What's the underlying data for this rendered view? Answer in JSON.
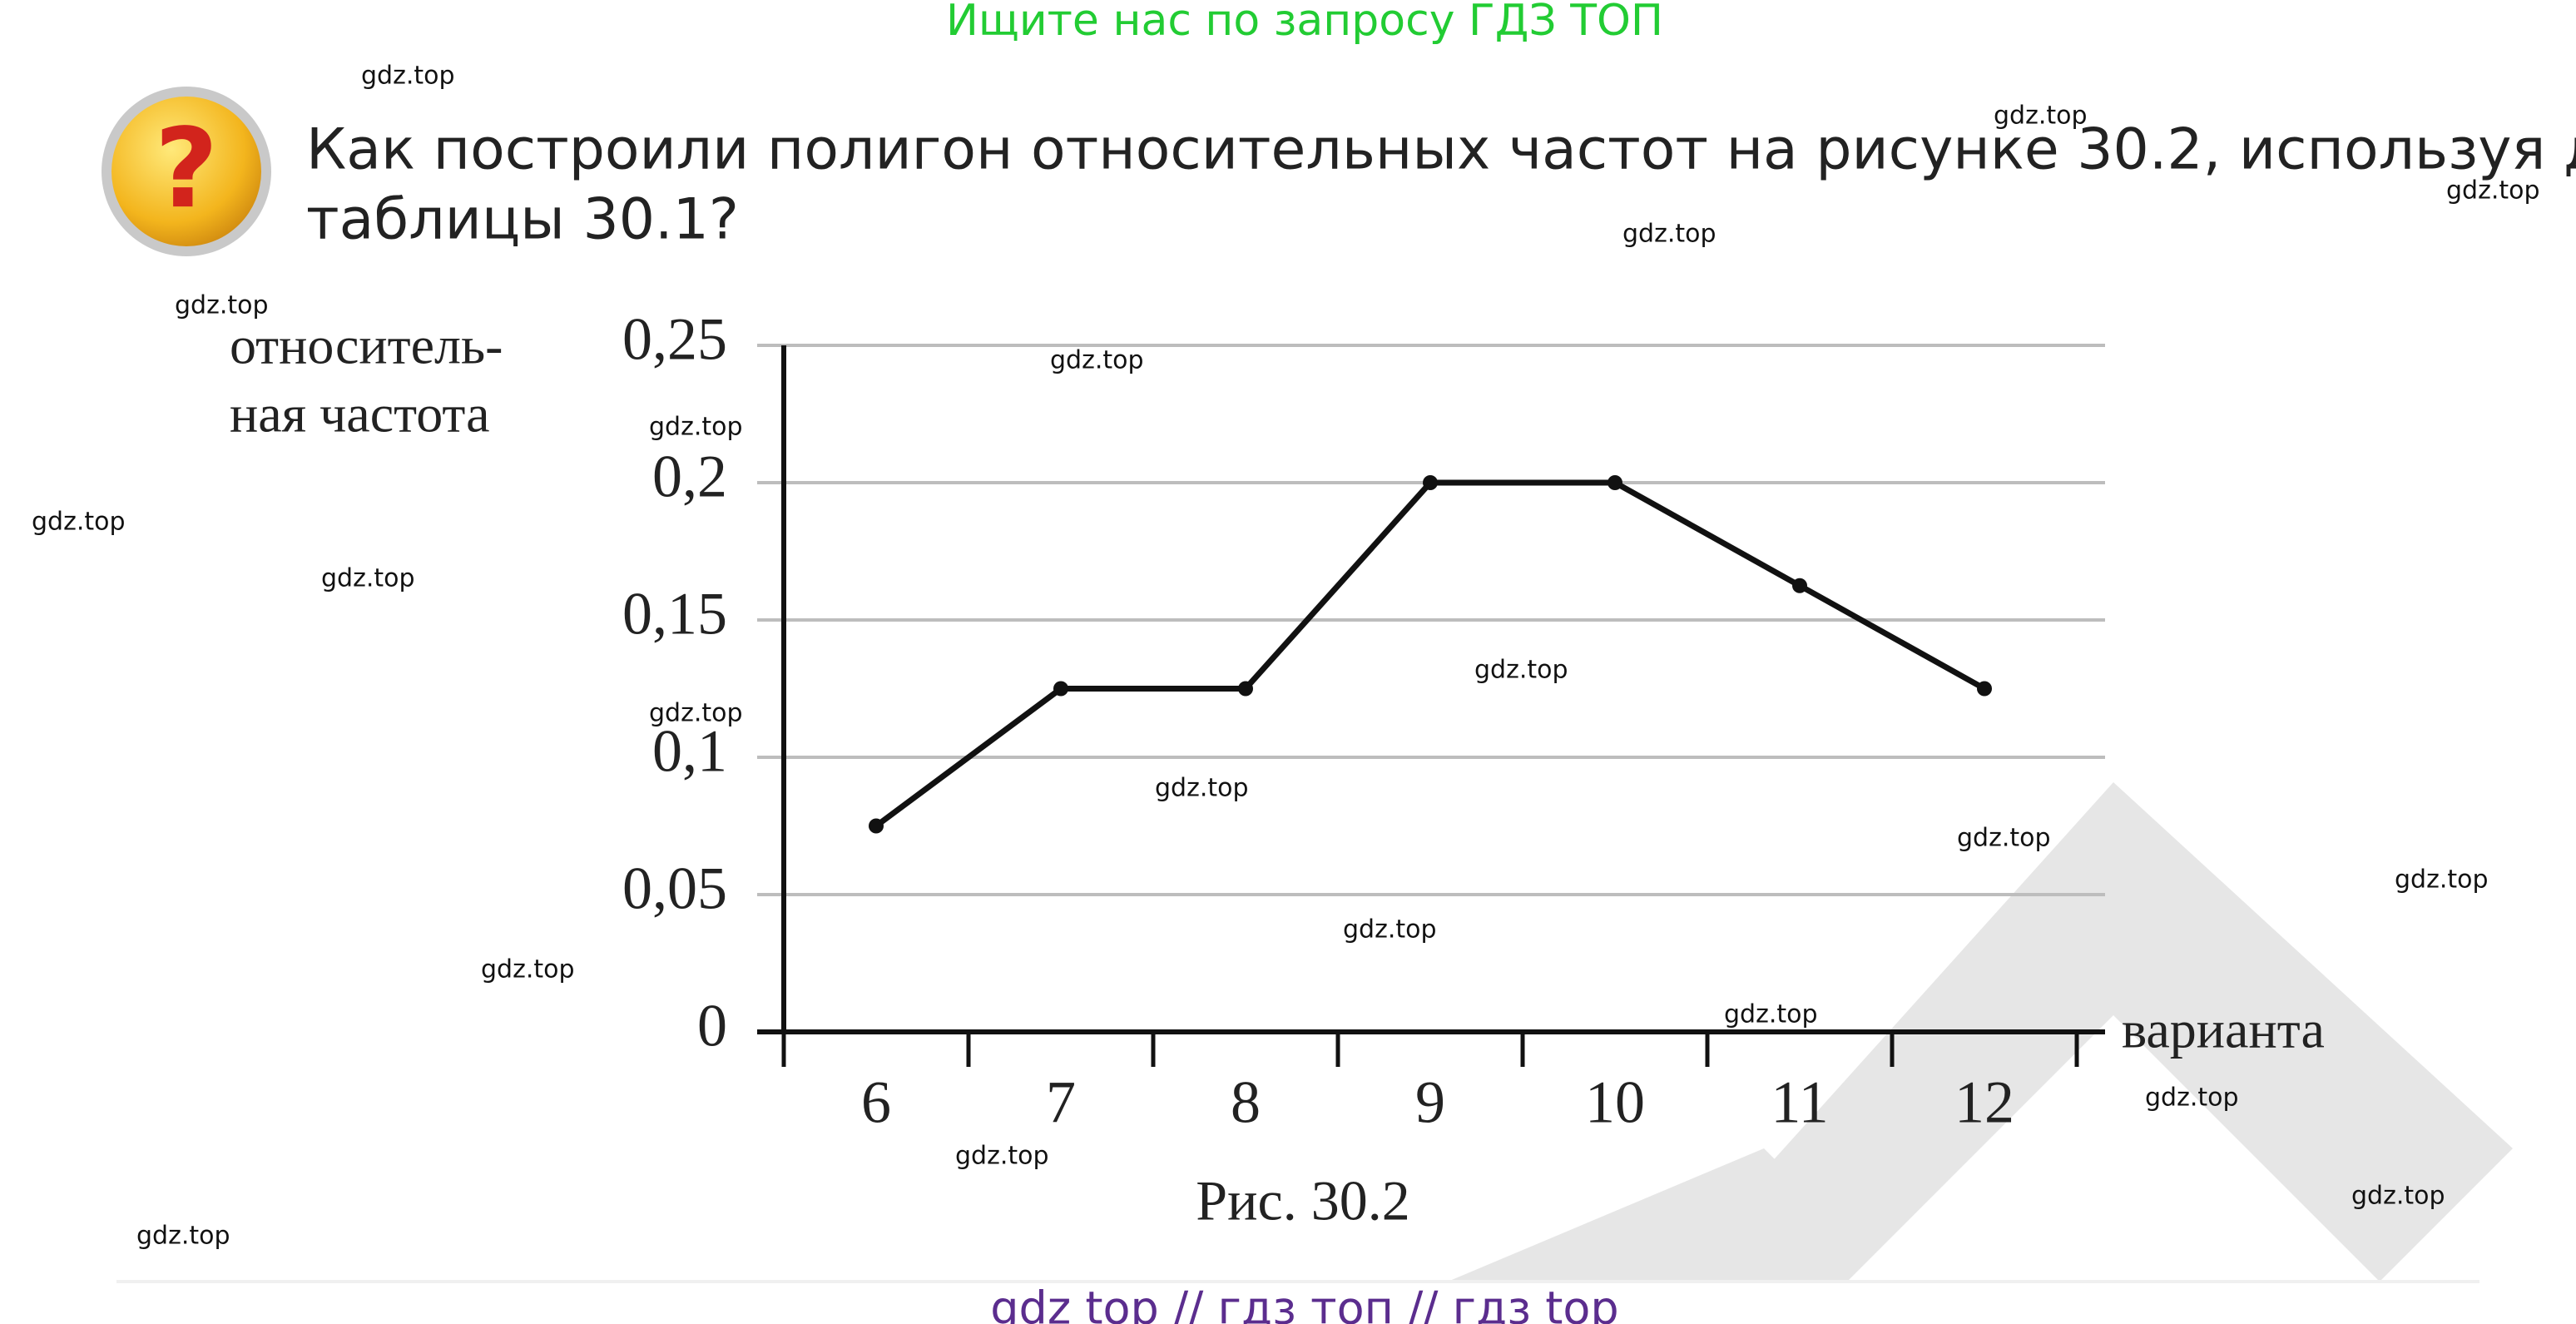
{
  "header": {
    "banner": "Ищите нас по запросу ГДЗ ТОП"
  },
  "question": {
    "lines": [
      "Как построили полигон относительных частот на рисунке 30.2, используя данные",
      "таблицы 30.1?"
    ]
  },
  "chart_data": {
    "type": "line",
    "y_label": [
      "относитель-",
      "ная частота"
    ],
    "x_label": "варианта",
    "caption": "Рис. 30.2",
    "categories": [
      "6",
      "7",
      "8",
      "9",
      "10",
      "11",
      "12"
    ],
    "values": [
      0.075,
      0.125,
      0.125,
      0.2,
      0.2,
      0.1625,
      0.125
    ],
    "color": "#111111",
    "ylim": [
      0,
      0.25
    ],
    "yticks": [
      0,
      {
        "value": 0.05,
        "label": "0,05"
      },
      {
        "value": 0.1,
        "label": "0,1"
      },
      {
        "value": 0.15,
        "label": "0,15"
      },
      {
        "value": 0.2,
        "label": "0,2"
      },
      {
        "value": 0.25,
        "label": "0,25"
      }
    ],
    "grid": true
  },
  "watermarks": [
    "gdz.top",
    "gdz.top",
    "gdz.top",
    "gdz.top",
    "gdz.top",
    "gdz.top",
    "gdz.top",
    "gdz.top",
    "gdz.top",
    "gdz.top",
    "gdz.top",
    "gdz.top",
    "gdz.top",
    "gdz.top",
    "gdz.top",
    "gdz.top",
    "gdz.top",
    "gdz.top",
    "gdz.top",
    "gdz.top",
    "gdz.top"
  ],
  "footer": {
    "text": "gdz top  //  гдз топ  //  гдз top"
  }
}
